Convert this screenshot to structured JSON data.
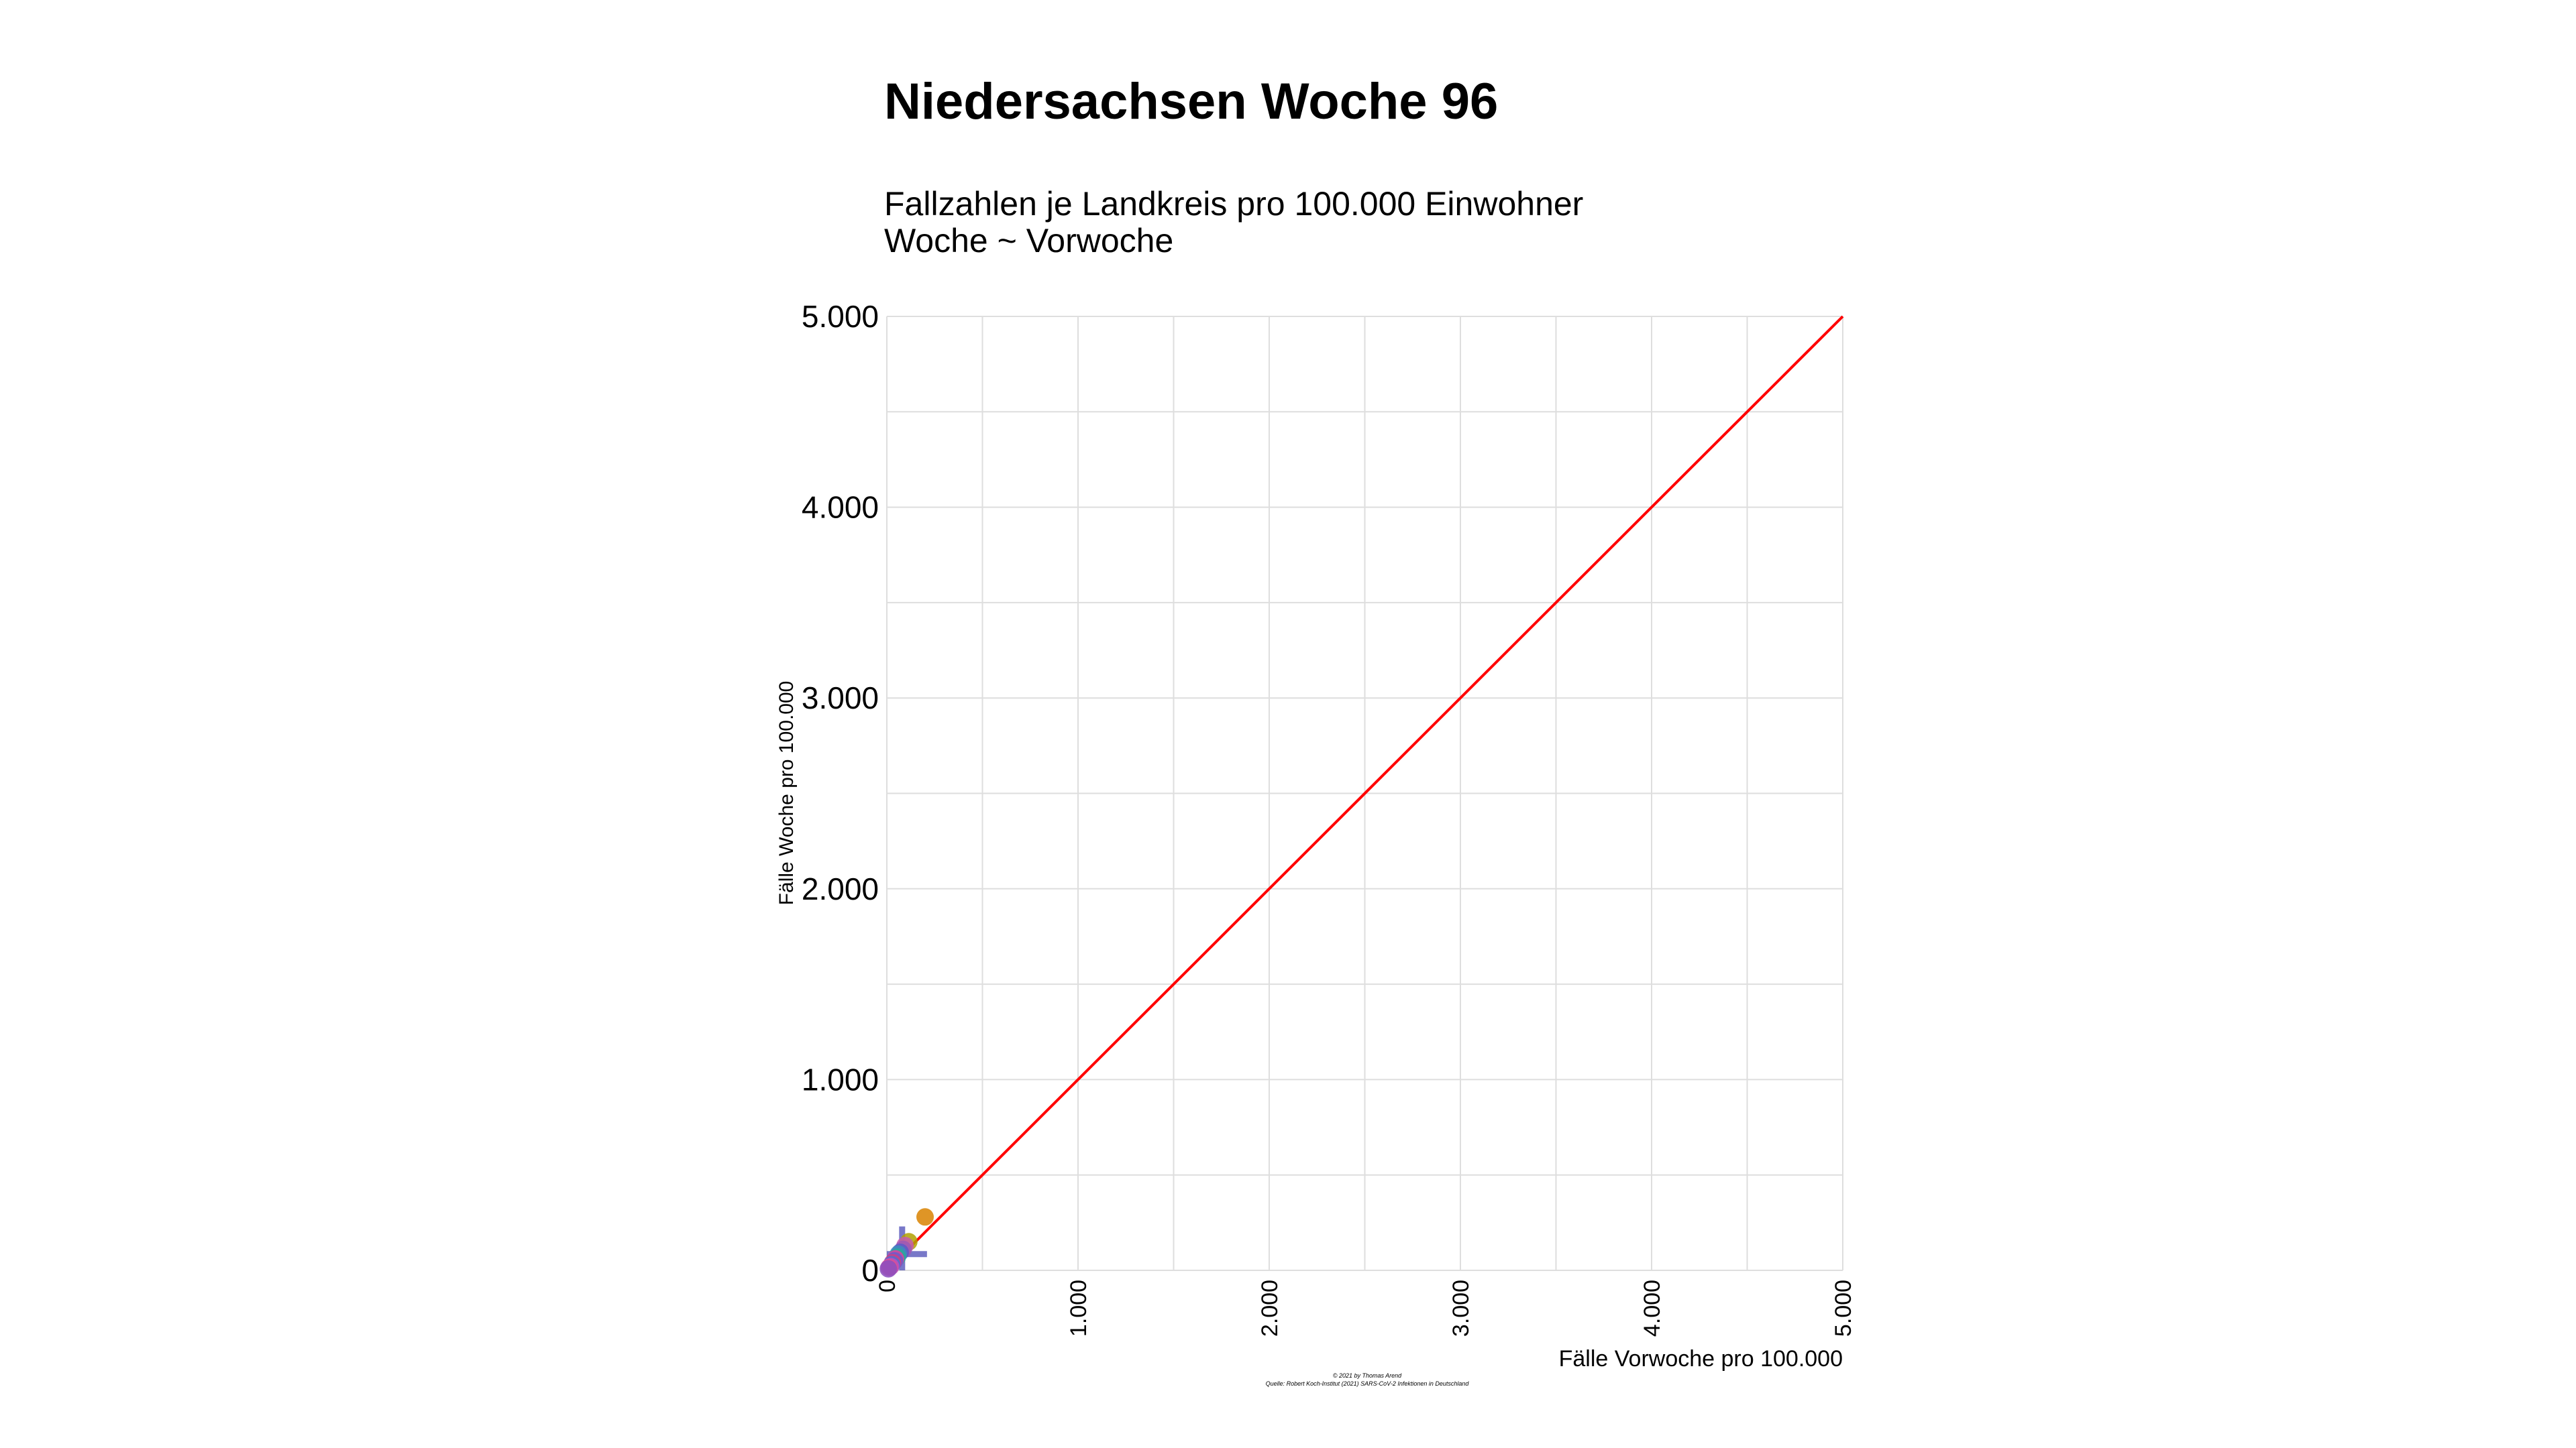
{
  "chart_data": {
    "type": "scatter",
    "title": "Niedersachsen Woche 96",
    "subtitle": [
      "Fallzahlen je Landkreis pro 100.000 Einwohner",
      "Woche ~ Vorwoche"
    ],
    "xlabel": "Fälle Vorwoche pro 100.000",
    "ylabel": "Fälle Woche pro 100.000",
    "xlim": [
      0,
      5000
    ],
    "ylim": [
      0,
      5000
    ],
    "x_ticks": [
      0,
      1000,
      2000,
      3000,
      4000,
      5000
    ],
    "x_tick_labels": [
      "0",
      "1.000",
      "2.000",
      "3.000",
      "4.000",
      "5.000"
    ],
    "y_ticks": [
      0,
      1000,
      2000,
      3000,
      4000,
      5000
    ],
    "y_tick_labels": [
      "0",
      "1.000",
      "2.000",
      "3.000",
      "4.000",
      "5.000"
    ],
    "grid": true,
    "reference_line": {
      "from": [
        0,
        0
      ],
      "to": [
        5000,
        5000
      ],
      "color": "#ff0000"
    },
    "caption": [
      "© 2021 by Thomas Arend",
      "Quelle: Robert Koch-Institut (2021) SARS-CoV-2 Infektionen in Deutschland"
    ],
    "points": [
      {
        "x": 200,
        "y": 280,
        "color": "#d98300"
      },
      {
        "x": 115,
        "y": 150,
        "color": "#b0a000"
      },
      {
        "x": 95,
        "y": 130,
        "color": "#c45bb0"
      },
      {
        "x": 85,
        "y": 110,
        "color": "#9b59b6"
      },
      {
        "x": 70,
        "y": 95,
        "color": "#5b5bc8"
      },
      {
        "x": 60,
        "y": 85,
        "color": "#3c8dbc"
      },
      {
        "x": 55,
        "y": 70,
        "color": "#2ca89a"
      },
      {
        "x": 45,
        "y": 60,
        "color": "#e040a0"
      },
      {
        "x": 40,
        "y": 50,
        "color": "#6a5acd"
      },
      {
        "x": 30,
        "y": 40,
        "color": "#d04080"
      },
      {
        "x": 25,
        "y": 30,
        "color": "#4f6fd0"
      },
      {
        "x": 20,
        "y": 20,
        "color": "#c050c0"
      },
      {
        "x": 12,
        "y": 15,
        "color": "#e05090"
      },
      {
        "x": 8,
        "y": 8,
        "color": "#8a4fc0"
      }
    ],
    "error_bars": [
      {
        "x": 80,
        "y": 85,
        "xmin": 0,
        "xmax": 210,
        "ymin": 0,
        "ymax": 230,
        "color": "#3f3fb0"
      }
    ]
  }
}
